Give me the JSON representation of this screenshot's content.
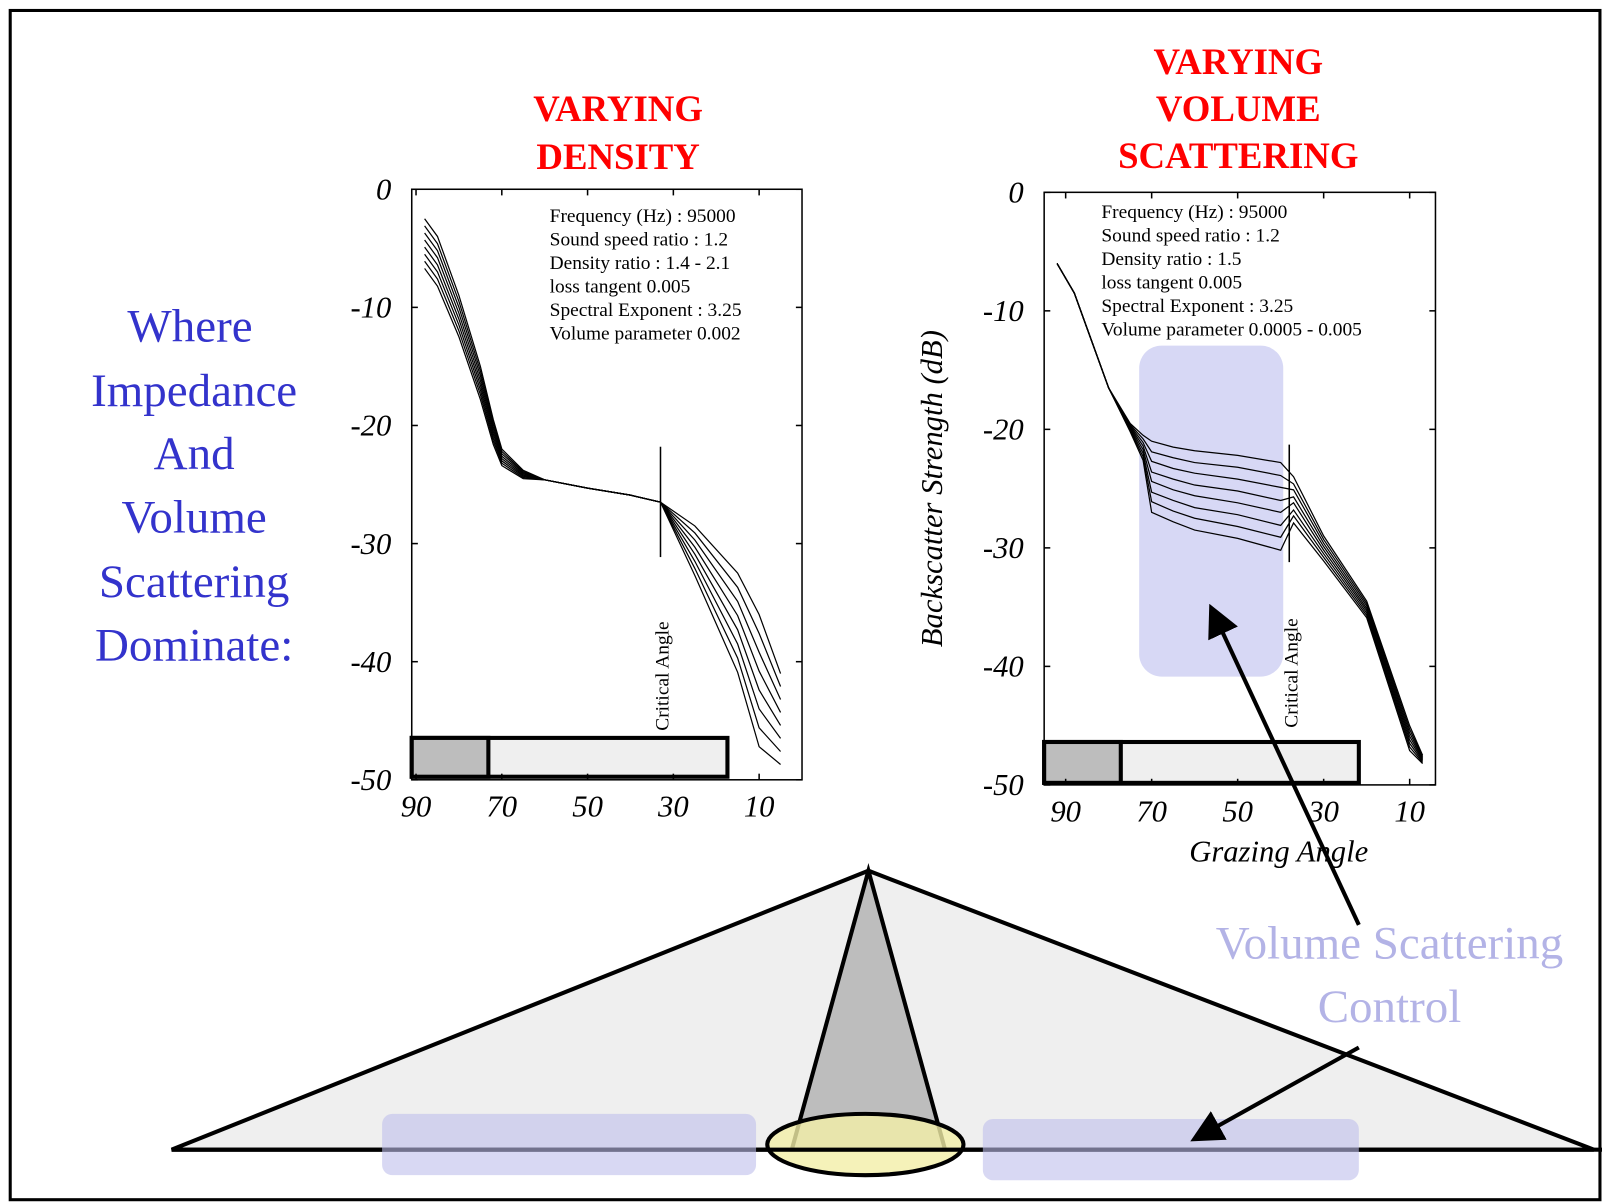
{
  "slide": {
    "heading": [
      "Where",
      "Impedance",
      "And",
      "Volume",
      "Scattering",
      "Dominate:"
    ],
    "callout": [
      "Volume Scattering",
      "Control"
    ]
  },
  "chart_data": [
    {
      "type": "line",
      "title": [
        "VARYING",
        "DENSITY"
      ],
      "notes": [
        "Frequency (Hz) : 95000",
        "Sound speed ratio : 1.2",
        "Density ratio : 1.4 - 2.1",
        "loss tangent 0.005",
        "Spectral Exponent : 3.25",
        "Volume parameter 0.002"
      ],
      "marker": {
        "label": "Critical Angle",
        "x": 33
      },
      "x": [
        88,
        85,
        80,
        75,
        72,
        70,
        65,
        60,
        50,
        40,
        33,
        25,
        15,
        10,
        5
      ],
      "series": [
        {
          "color": "#000000",
          "values": [
            -2.5,
            -4,
            -9,
            -15,
            -19.5,
            -22,
            -23.8,
            -24.6,
            -25.3,
            -25.9,
            -26.5,
            -28.5,
            -32.5,
            -36,
            -41
          ]
        },
        {
          "color": "#000000",
          "values": [
            -3.1,
            -4.6,
            -9.5,
            -15.4,
            -19.8,
            -22.2,
            -23.9,
            -24.6,
            -25.3,
            -25.9,
            -26.5,
            -29.1,
            -33.7,
            -37.6,
            -42.1
          ]
        },
        {
          "color": "#000000",
          "values": [
            -3.7,
            -5.2,
            -10,
            -15.8,
            -20.1,
            -22.4,
            -24,
            -24.6,
            -25.3,
            -25.9,
            -26.5,
            -29.7,
            -34.9,
            -39.2,
            -43.2
          ]
        },
        {
          "color": "#000000",
          "values": [
            -4.3,
            -5.8,
            -10.5,
            -16.2,
            -20.4,
            -22.6,
            -24.1,
            -24.6,
            -25.3,
            -25.9,
            -26.5,
            -30.3,
            -36.1,
            -40.8,
            -44.3
          ]
        },
        {
          "color": "#000000",
          "values": [
            -4.9,
            -6.4,
            -11,
            -16.6,
            -20.7,
            -22.8,
            -24.2,
            -24.6,
            -25.3,
            -25.9,
            -26.5,
            -30.9,
            -37.3,
            -42.4,
            -45.4
          ]
        },
        {
          "color": "#000000",
          "values": [
            -5.5,
            -7,
            -11.5,
            -17,
            -21,
            -23,
            -24.3,
            -24.6,
            -25.3,
            -25.9,
            -26.5,
            -31.5,
            -38.5,
            -44,
            -46.5
          ]
        },
        {
          "color": "#000000",
          "values": [
            -6.1,
            -7.6,
            -12,
            -17.4,
            -21.3,
            -23.2,
            -24.4,
            -24.6,
            -25.3,
            -25.9,
            -26.5,
            -32.1,
            -39.7,
            -45.6,
            -47.6
          ]
        },
        {
          "color": "#000000",
          "values": [
            -6.7,
            -8.2,
            -12.5,
            -17.8,
            -21.6,
            -23.4,
            -24.5,
            -24.6,
            -25.3,
            -25.9,
            -26.5,
            -32.7,
            -40.9,
            -47.2,
            -48.7
          ]
        }
      ],
      "xlim": [
        91,
        0
      ],
      "ylim": [
        -50,
        0
      ],
      "xticks": [
        90,
        70,
        50,
        30,
        10
      ],
      "yticks": [
        0,
        -10,
        -20,
        -30,
        -40,
        -50
      ]
    },
    {
      "type": "line",
      "title": [
        "VARYING",
        "VOLUME",
        "SCATTERING"
      ],
      "ylabel": "Backscatter  Strength  (dB)",
      "xlabel": "Grazing  Angle",
      "notes": [
        "Frequency (Hz) : 95000",
        "Sound speed ratio : 1.2",
        "Density ratio : 1.5",
        "loss tangent 0.005",
        "Spectral Exponent : 3.25",
        "Volume parameter 0.0005 - 0.005"
      ],
      "marker": {
        "label": "Critical Angle",
        "x": 38
      },
      "x": [
        92,
        88,
        85,
        80,
        75,
        72,
        70,
        65,
        60,
        50,
        40,
        37,
        30,
        20,
        10,
        7
      ],
      "series": [
        {
          "color": "#000000",
          "values": [
            -6,
            -8.5,
            -11.5,
            -16.5,
            -19.5,
            -20.5,
            -21,
            -21.5,
            -21.8,
            -22.2,
            -22.8,
            -24,
            -29,
            -34.5,
            -45,
            -47.5
          ]
        },
        {
          "color": "#000000",
          "values": [
            -6,
            -8.5,
            -11.5,
            -16.5,
            -19.6,
            -20.8,
            -21.9,
            -22.4,
            -22.8,
            -23.2,
            -23.9,
            -24.6,
            -29.3,
            -34.7,
            -45.3,
            -47.6
          ]
        },
        {
          "color": "#000000",
          "values": [
            -6,
            -8.5,
            -11.5,
            -16.5,
            -19.7,
            -21.1,
            -22.7,
            -23.3,
            -23.7,
            -24.2,
            -24.9,
            -25.1,
            -29.6,
            -34.9,
            -45.6,
            -47.7
          ]
        },
        {
          "color": "#000000",
          "values": [
            -6,
            -8.5,
            -11.5,
            -16.5,
            -19.8,
            -21.4,
            -23.6,
            -24.2,
            -24.7,
            -25.2,
            -26,
            -25.7,
            -29.9,
            -35.1,
            -45.9,
            -47.8
          ]
        },
        {
          "color": "#000000",
          "values": [
            -6,
            -8.5,
            -11.5,
            -16.5,
            -19.9,
            -21.7,
            -24.4,
            -25.1,
            -25.6,
            -26.2,
            -27,
            -26.2,
            -30.2,
            -35.3,
            -46.2,
            -47.9
          ]
        },
        {
          "color": "#000000",
          "values": [
            -6,
            -8.5,
            -11.5,
            -16.5,
            -20,
            -22,
            -25.3,
            -26,
            -26.6,
            -27.2,
            -28.1,
            -26.8,
            -30.5,
            -35.5,
            -46.5,
            -48
          ]
        },
        {
          "color": "#000000",
          "values": [
            -6,
            -8.5,
            -11.5,
            -16.5,
            -20.1,
            -22.3,
            -26.1,
            -26.9,
            -27.5,
            -28.2,
            -29.1,
            -27.3,
            -30.8,
            -35.7,
            -46.8,
            -48.1
          ]
        },
        {
          "color": "#000000",
          "values": [
            -6,
            -8.5,
            -11.5,
            -16.5,
            -20.2,
            -22.6,
            -27,
            -27.8,
            -28.5,
            -29.2,
            -30.2,
            -27.9,
            -31.1,
            -35.9,
            -47.1,
            -48.2
          ]
        }
      ],
      "xlim": [
        95,
        4
      ],
      "ylim": [
        -50,
        0
      ],
      "xticks": [
        90,
        70,
        50,
        30,
        10
      ],
      "yticks": [
        0,
        -10,
        -20,
        -30,
        -40,
        -50
      ]
    }
  ]
}
